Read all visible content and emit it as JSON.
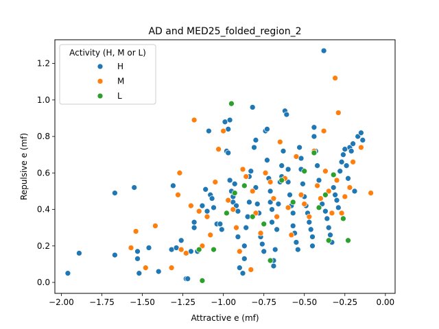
{
  "chart_data": {
    "type": "scatter",
    "title": "AD and MED25_folded_region_2",
    "xlabel": "Attractive e (mf)",
    "ylabel": "Repulsive e (mf)",
    "xlim": [
      -2.04,
      0.06
    ],
    "ylim": [
      -0.06,
      1.33
    ],
    "xticks": [
      -2.0,
      -1.75,
      -1.5,
      -1.25,
      -1.0,
      -0.75,
      -0.5,
      -0.25,
      0.0
    ],
    "xtick_labels": [
      "−2.00",
      "−1.75",
      "−1.50",
      "−1.25",
      "−1.00",
      "−0.75",
      "−0.50",
      "−0.25",
      "0.00"
    ],
    "yticks": [
      0.0,
      0.2,
      0.4,
      0.6,
      0.8,
      1.0,
      1.2
    ],
    "ytick_labels": [
      "0.0",
      "0.2",
      "0.4",
      "0.6",
      "0.8",
      "1.0",
      "1.2"
    ],
    "legend": {
      "title": "Activity (H, M or L)",
      "position": "top-left",
      "entries": [
        "H",
        "M",
        "L"
      ]
    },
    "colors": {
      "H": "#1f77b4",
      "M": "#ff7f0e",
      "L": "#2ca02c"
    },
    "series": [
      {
        "name": "H",
        "points": [
          [
            -1.96,
            0.05
          ],
          [
            -1.89,
            0.16
          ],
          [
            -1.67,
            0.49
          ],
          [
            -1.67,
            0.15
          ],
          [
            -1.55,
            0.52
          ],
          [
            -1.53,
            0.17
          ],
          [
            -1.53,
            0.13
          ],
          [
            -1.52,
            0.05
          ],
          [
            -1.46,
            0.19
          ],
          [
            -1.4,
            0.06
          ],
          [
            -1.31,
            0.53
          ],
          [
            -1.32,
            0.18
          ],
          [
            -1.29,
            0.19
          ],
          [
            -1.26,
            0.23
          ],
          [
            -1.23,
            0.02
          ],
          [
            -1.22,
            0.02
          ],
          [
            -1.2,
            0.17
          ],
          [
            -1.18,
            0.33
          ],
          [
            -1.18,
            0.3
          ],
          [
            -1.16,
            0.17
          ],
          [
            -1.13,
            0.42
          ],
          [
            -1.11,
            0.51
          ],
          [
            -1.1,
            0.39
          ],
          [
            -1.09,
            0.83
          ],
          [
            -1.08,
            0.48
          ],
          [
            -1.07,
            0.46
          ],
          [
            -1.06,
            0.41
          ],
          [
            -1.04,
            0.32
          ],
          [
            -1.02,
            0.32
          ],
          [
            -1.01,
            0.29
          ],
          [
            -0.99,
            0.88
          ],
          [
            -0.98,
            0.72
          ],
          [
            -0.97,
            0.84
          ],
          [
            -0.97,
            0.71
          ],
          [
            -0.96,
            0.89
          ],
          [
            -0.96,
            0.56
          ],
          [
            -0.95,
            0.5
          ],
          [
            -0.94,
            0.47
          ],
          [
            -0.94,
            0.44
          ],
          [
            -0.93,
            0.54
          ],
          [
            -0.92,
            0.42
          ],
          [
            -0.91,
            0.39
          ],
          [
            -0.91,
            0.25
          ],
          [
            -0.9,
            0.08
          ],
          [
            -0.88,
            0.05
          ],
          [
            -0.87,
            0.13
          ],
          [
            -0.87,
            0.2
          ],
          [
            -0.86,
            0.3
          ],
          [
            -0.85,
            0.36
          ],
          [
            -0.84,
            0.44
          ],
          [
            -0.84,
            0.58
          ],
          [
            -0.83,
            0.61
          ],
          [
            -0.82,
            0.96
          ],
          [
            -0.81,
            0.74
          ],
          [
            -0.8,
            0.78
          ],
          [
            -0.8,
            0.52
          ],
          [
            -0.79,
            0.43
          ],
          [
            -0.78,
            0.38
          ],
          [
            -0.77,
            0.25
          ],
          [
            -0.76,
            0.21
          ],
          [
            -0.75,
            0.17
          ],
          [
            -0.74,
            0.83
          ],
          [
            -0.73,
            0.84
          ],
          [
            -0.73,
            0.67
          ],
          [
            -0.72,
            0.57
          ],
          [
            -0.71,
            0.5
          ],
          [
            -0.71,
            0.44
          ],
          [
            -0.7,
            0.4
          ],
          [
            -0.7,
            0.33
          ],
          [
            -0.69,
            0.09
          ],
          [
            -0.69,
            0.12
          ],
          [
            -0.68,
            0.18
          ],
          [
            -0.67,
            0.29
          ],
          [
            -0.66,
            0.43
          ],
          [
            -0.65,
            0.55
          ],
          [
            -0.64,
            0.58
          ],
          [
            -0.64,
            0.64
          ],
          [
            -0.63,
            0.72
          ],
          [
            -0.62,
            0.94
          ],
          [
            -0.61,
            0.92
          ],
          [
            -0.6,
            0.62
          ],
          [
            -0.6,
            0.55
          ],
          [
            -0.59,
            0.48
          ],
          [
            -0.58,
            0.42
          ],
          [
            -0.57,
            0.38
          ],
          [
            -0.57,
            0.31
          ],
          [
            -0.56,
            0.27
          ],
          [
            -0.55,
            0.22
          ],
          [
            -0.54,
            0.18
          ],
          [
            -0.53,
            0.74
          ],
          [
            -0.52,
            0.68
          ],
          [
            -0.52,
            0.62
          ],
          [
            -0.51,
            0.54
          ],
          [
            -0.5,
            0.47
          ],
          [
            -0.49,
            0.42
          ],
          [
            -0.48,
            0.38
          ],
          [
            -0.47,
            0.33
          ],
          [
            -0.46,
            0.29
          ],
          [
            -0.45,
            0.25
          ],
          [
            -0.45,
            0.2
          ],
          [
            -0.44,
            0.85
          ],
          [
            -0.44,
            0.8
          ],
          [
            -0.43,
            0.72
          ],
          [
            -0.42,
            0.64
          ],
          [
            -0.41,
            0.56
          ],
          [
            -0.4,
            0.46
          ],
          [
            -0.39,
            0.43
          ],
          [
            -0.38,
            1.27
          ],
          [
            -0.37,
            0.39
          ],
          [
            -0.36,
            0.35
          ],
          [
            -0.35,
            0.3
          ],
          [
            -0.34,
            0.26
          ],
          [
            -0.33,
            0.22
          ],
          [
            -0.32,
            0.52
          ],
          [
            -0.31,
            0.48
          ],
          [
            -0.3,
            0.45
          ],
          [
            -0.29,
            0.41
          ],
          [
            -0.28,
            0.61
          ],
          [
            -0.27,
            0.66
          ],
          [
            -0.26,
            0.7
          ],
          [
            -0.25,
            0.73
          ],
          [
            -0.24,
            0.64
          ],
          [
            -0.23,
            0.57
          ],
          [
            -0.22,
            0.74
          ],
          [
            -0.21,
            0.72
          ],
          [
            -0.2,
            0.76
          ],
          [
            -0.19,
            0.5
          ],
          [
            -0.17,
            0.8
          ],
          [
            -0.15,
            0.82
          ],
          [
            -0.14,
            0.78
          ]
        ]
      },
      {
        "name": "M",
        "points": [
          [
            -1.57,
            0.19
          ],
          [
            -1.54,
            0.28
          ],
          [
            -1.48,
            0.08
          ],
          [
            -1.42,
            0.31
          ],
          [
            -1.32,
            0.08
          ],
          [
            -1.28,
            0.48
          ],
          [
            -1.27,
            0.6
          ],
          [
            -1.26,
            0.18
          ],
          [
            -1.23,
            0.16
          ],
          [
            -1.2,
            0.42
          ],
          [
            -1.18,
            0.89
          ],
          [
            -1.15,
            0.39
          ],
          [
            -1.13,
            0.2
          ],
          [
            -1.1,
            0.36
          ],
          [
            -1.08,
            0.26
          ],
          [
            -1.05,
            0.55
          ],
          [
            -1.03,
            0.73
          ],
          [
            -1.0,
            0.83
          ],
          [
            -0.97,
            0.45
          ],
          [
            -0.94,
            0.4
          ],
          [
            -0.92,
            0.3
          ],
          [
            -0.9,
            0.17
          ],
          [
            -0.88,
            0.62
          ],
          [
            -0.86,
            0.58
          ],
          [
            -0.83,
            0.07
          ],
          [
            -0.82,
            0.5
          ],
          [
            -0.8,
            0.38
          ],
          [
            -0.77,
            0.27
          ],
          [
            -0.74,
            0.6
          ],
          [
            -0.71,
            0.55
          ],
          [
            -0.69,
            0.46
          ],
          [
            -0.67,
            0.36
          ],
          [
            -0.65,
            0.77
          ],
          [
            -0.62,
            0.57
          ],
          [
            -0.6,
            0.41
          ],
          [
            -0.58,
            0.26
          ],
          [
            -0.55,
            0.69
          ],
          [
            -0.52,
            0.48
          ],
          [
            -0.5,
            0.43
          ],
          [
            -0.47,
            0.36
          ],
          [
            -0.44,
            0.72
          ],
          [
            -0.42,
            0.53
          ],
          [
            -0.4,
            0.46
          ],
          [
            -0.38,
            0.83
          ],
          [
            -0.37,
            0.61
          ],
          [
            -0.35,
            0.5
          ],
          [
            -0.33,
            0.38
          ],
          [
            -0.31,
            1.12
          ],
          [
            -0.3,
            0.56
          ],
          [
            -0.29,
            0.93
          ],
          [
            -0.27,
            0.38
          ],
          [
            -0.25,
            0.47
          ],
          [
            -0.22,
            0.52
          ],
          [
            -0.2,
            0.66
          ],
          [
            -0.15,
            0.74
          ],
          [
            -0.09,
            0.49
          ]
        ]
      },
      {
        "name": "L",
        "points": [
          [
            -1.15,
            0.18
          ],
          [
            -1.13,
            0.01
          ],
          [
            -1.06,
            0.18
          ],
          [
            -0.98,
            0.38
          ],
          [
            -0.95,
            0.98
          ],
          [
            -0.93,
            0.49
          ],
          [
            -0.87,
            0.53
          ],
          [
            -0.82,
            0.36
          ],
          [
            -0.75,
            0.32
          ],
          [
            -0.71,
            0.12
          ],
          [
            -0.64,
            0.56
          ],
          [
            -0.57,
            0.44
          ],
          [
            -0.5,
            0.61
          ],
          [
            -0.44,
            0.71
          ],
          [
            -0.41,
            0.41
          ],
          [
            -0.37,
            0.48
          ],
          [
            -0.35,
            0.23
          ],
          [
            -0.32,
            0.59
          ],
          [
            -0.26,
            0.35
          ],
          [
            -0.23,
            0.23
          ]
        ]
      }
    ]
  }
}
